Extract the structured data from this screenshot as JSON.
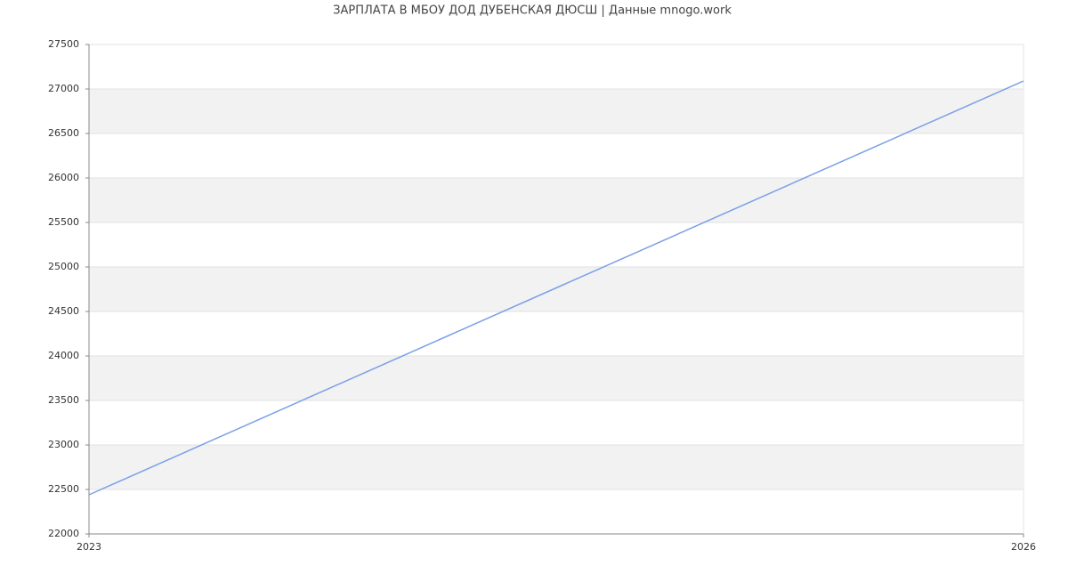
{
  "chart_data": {
    "type": "line",
    "title": "ЗАРПЛАТА В МБОУ ДОД ДУБЕНСКАЯ ДЮСШ | Данные mnogo.work",
    "x": [
      2023,
      2026
    ],
    "series": [
      {
        "color": "#7a9fe8",
        "values": [
          22440,
          27090
        ]
      }
    ],
    "xlim": [
      2023,
      2026
    ],
    "xticks": [
      2023,
      2026
    ],
    "ylim": [
      22000,
      27500
    ],
    "yticks": [
      22000,
      22500,
      23000,
      23500,
      24000,
      24500,
      25000,
      25500,
      26000,
      26500,
      27000,
      27500
    ],
    "grid": true,
    "bands": true
  }
}
